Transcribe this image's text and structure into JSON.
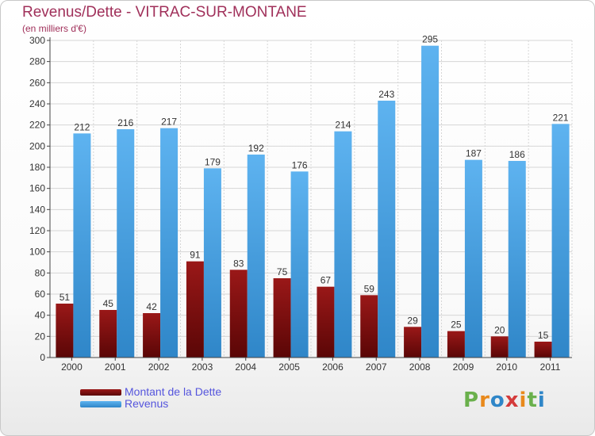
{
  "title": "Revenus/Dette - VITRAC-SUR-MONTANE",
  "subtitle": "(en milliers d'€)",
  "colors": {
    "dette": "#7a0c0c",
    "revenus": "#3f9ee6",
    "title": "#a0305a",
    "legend_text": "#5555dd",
    "grid": "#d6d6d6"
  },
  "legend": {
    "dette_label": "Montant de la Dette",
    "revenus_label": "Revenus"
  },
  "logo": {
    "text": "Proxiti",
    "letter_colors": [
      "#6ab04c",
      "#e8891c",
      "#2f86c8",
      "#d43b3b",
      "#e8891c",
      "#6ab04c",
      "#2f86c8"
    ]
  },
  "chart_data": {
    "type": "bar",
    "categories": [
      "2000",
      "2001",
      "2002",
      "2003",
      "2004",
      "2005",
      "2006",
      "2007",
      "2008",
      "2009",
      "2010",
      "2011"
    ],
    "series": [
      {
        "name": "Montant de la Dette",
        "values": [
          51,
          45,
          42,
          91,
          83,
          75,
          67,
          59,
          29,
          25,
          20,
          15
        ]
      },
      {
        "name": "Revenus",
        "values": [
          212,
          216,
          217,
          179,
          192,
          176,
          214,
          243,
          295,
          187,
          186,
          221
        ]
      }
    ],
    "yticks": [
      0,
      20,
      40,
      60,
      80,
      100,
      120,
      140,
      160,
      180,
      200,
      220,
      240,
      260,
      280,
      300
    ],
    "ylim": [
      0,
      300
    ],
    "grid": true,
    "legend_position": "bottom-left"
  }
}
